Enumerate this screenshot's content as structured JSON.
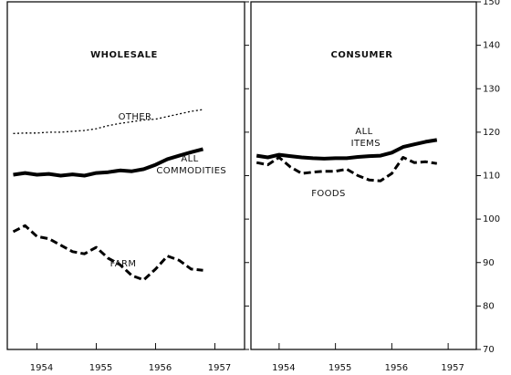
{
  "chart_data": [
    {
      "type": "line",
      "title": "WHOLESALE",
      "x": [
        1953.6,
        1953.8,
        1954.0,
        1954.2,
        1954.4,
        1954.6,
        1954.8,
        1955.0,
        1955.2,
        1955.4,
        1955.6,
        1955.8,
        1956.0,
        1956.2,
        1956.4,
        1956.6,
        1956.8
      ],
      "series": [
        {
          "name": "OTHER",
          "color": "#000",
          "line_style": "dotted",
          "values": [
            119.7,
            119.8,
            119.8,
            120.0,
            120.0,
            120.2,
            120.4,
            120.8,
            121.5,
            122.0,
            122.4,
            122.8,
            123.0,
            123.6,
            124.2,
            124.8,
            125.2
          ]
        },
        {
          "name": "ALL COMMODITIES",
          "color": "#000",
          "line_style": "solid",
          "values": [
            110.2,
            110.6,
            110.2,
            110.4,
            110.0,
            110.3,
            110.0,
            110.6,
            110.8,
            111.2,
            111.0,
            111.5,
            112.5,
            113.8,
            114.6,
            115.4,
            116.1
          ]
        },
        {
          "name": "FARM",
          "color": "#000",
          "line_style": "dashed",
          "values": [
            97.1,
            98.5,
            96.0,
            95.5,
            94.0,
            92.5,
            92.0,
            93.5,
            91.0,
            89.5,
            87.0,
            86.0,
            88.5,
            91.5,
            90.5,
            88.5,
            88.2
          ]
        }
      ],
      "xlim": [
        1953.5,
        1957.5
      ],
      "xticks": [
        1954,
        1955,
        1956,
        1957
      ],
      "ylim": [
        70,
        150
      ],
      "yticks": [
        70,
        80,
        90,
        100,
        110,
        120,
        130,
        140,
        150
      ]
    },
    {
      "type": "line",
      "title": "CONSUMER",
      "x": [
        1953.6,
        1953.8,
        1954.0,
        1954.2,
        1954.4,
        1954.6,
        1954.8,
        1955.0,
        1955.2,
        1955.4,
        1955.6,
        1955.8,
        1956.0,
        1956.2,
        1956.4,
        1956.6,
        1956.8
      ],
      "series": [
        {
          "name": "ALL ITEMS",
          "color": "#000",
          "line_style": "solid",
          "values": [
            114.6,
            114.2,
            114.8,
            114.5,
            114.2,
            114.0,
            113.9,
            114.0,
            114.0,
            114.3,
            114.5,
            114.6,
            115.3,
            116.6,
            117.2,
            117.8,
            118.2
          ]
        },
        {
          "name": "FOODS",
          "color": "#000",
          "line_style": "dashed",
          "values": [
            113.0,
            112.5,
            114.2,
            112.0,
            110.5,
            110.8,
            111.0,
            111.0,
            111.5,
            110.0,
            109.0,
            108.8,
            110.5,
            114.2,
            113.0,
            113.2,
            112.8
          ]
        }
      ],
      "xlim": [
        1953.5,
        1957.5
      ],
      "xticks": [
        1954,
        1955,
        1956,
        1957
      ],
      "ylim": [
        70,
        150
      ],
      "yticks": [
        70,
        80,
        90,
        100,
        110,
        120,
        130,
        140,
        150
      ],
      "y_labels": true
    }
  ]
}
